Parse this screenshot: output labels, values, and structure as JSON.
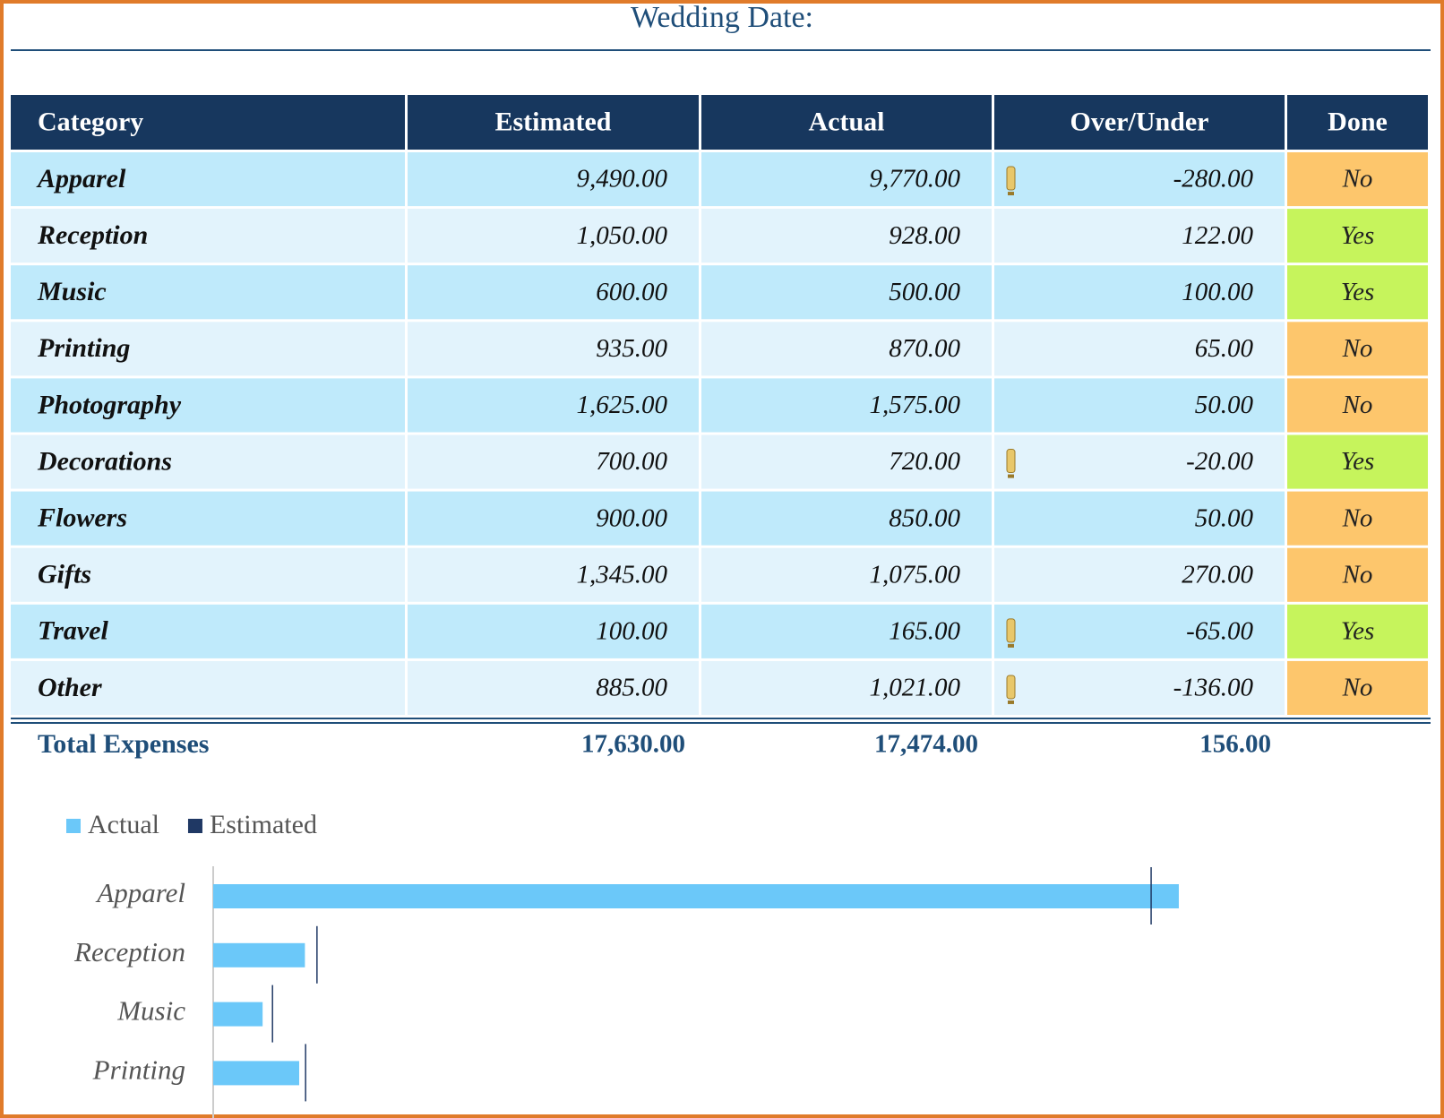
{
  "header": {
    "title": "Wedding Date:"
  },
  "table": {
    "columns": [
      "Category",
      "Estimated",
      "Actual",
      "Over/Under",
      "Done"
    ],
    "rows": [
      {
        "category": "Apparel",
        "estimated": "9,490.00",
        "actual": "9,770.00",
        "over_under": "-280.00",
        "done": "No",
        "done_color": "#fdc66c"
      },
      {
        "category": "Reception",
        "estimated": "1,050.00",
        "actual": "928.00",
        "over_under": "122.00",
        "done": "Yes",
        "done_color": "#c6f45c"
      },
      {
        "category": "Music",
        "estimated": "600.00",
        "actual": "500.00",
        "over_under": "100.00",
        "done": "Yes",
        "done_color": "#c6f45c"
      },
      {
        "category": "Printing",
        "estimated": "935.00",
        "actual": "870.00",
        "over_under": "65.00",
        "done": "No",
        "done_color": "#fdc66c"
      },
      {
        "category": "Photography",
        "estimated": "1,625.00",
        "actual": "1,575.00",
        "over_under": "50.00",
        "done": "No",
        "done_color": "#fdc66c"
      },
      {
        "category": "Decorations",
        "estimated": "700.00",
        "actual": "720.00",
        "over_under": "-20.00",
        "done": "Yes",
        "done_color": "#c6f45c"
      },
      {
        "category": "Flowers",
        "estimated": "900.00",
        "actual": "850.00",
        "over_under": "50.00",
        "done": "No",
        "done_color": "#fdc66c"
      },
      {
        "category": "Gifts",
        "estimated": "1,345.00",
        "actual": "1,075.00",
        "over_under": "270.00",
        "done": "No",
        "done_color": "#fdc66c"
      },
      {
        "category": "Travel",
        "estimated": "100.00",
        "actual": "165.00",
        "over_under": "-65.00",
        "done": "Yes",
        "done_color": "#c6f45c"
      },
      {
        "category": "Other",
        "estimated": "885.00",
        "actual": "1,021.00",
        "over_under": "-136.00",
        "done": "No",
        "done_color": "#fdc66c"
      }
    ],
    "total": {
      "label": "Total Expenses",
      "estimated": "17,630.00",
      "actual": "17,474.00",
      "over_under": "156.00"
    }
  },
  "chart_data": {
    "type": "bar",
    "orientation": "horizontal",
    "categories": [
      "Apparel",
      "Reception",
      "Music",
      "Printing"
    ],
    "series": [
      {
        "name": "Actual",
        "color": "#6bc8f9",
        "values": [
          9770,
          928,
          500,
          870
        ]
      },
      {
        "name": "Estimated",
        "color": "#1f3864",
        "values": [
          9490,
          1050,
          600,
          935
        ]
      }
    ],
    "xlim": [
      0,
      12000
    ]
  }
}
